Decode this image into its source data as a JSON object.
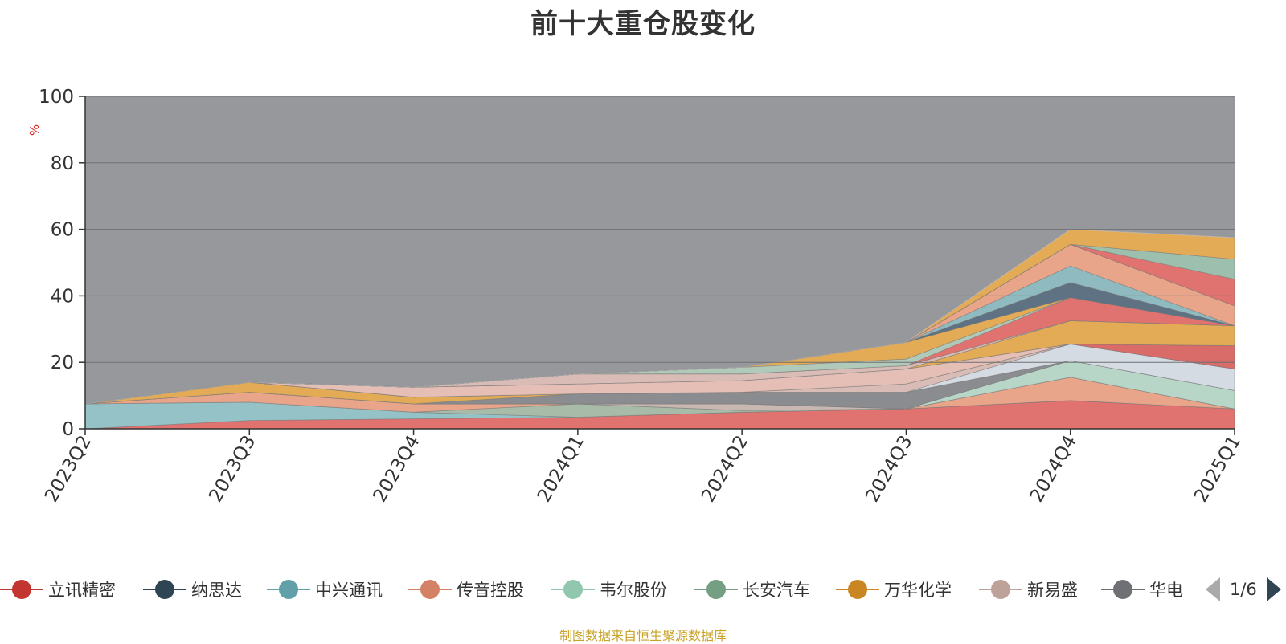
{
  "title": "前十大重仓股变化",
  "source_note": "制图数据来自恒生聚源数据库",
  "pager": {
    "text": "1/6",
    "prev_icon": "triangle-left-icon",
    "next_icon": "triangle-right-icon"
  },
  "colors": {
    "background_area": "#97989c",
    "grid": "#6f7073",
    "axis": "#333333",
    "ylabel": "#e02020"
  },
  "legend": [
    {
      "name": "立讯精密",
      "color": "#c23531"
    },
    {
      "name": "纳思达",
      "color": "#2f4554"
    },
    {
      "name": "中兴通讯",
      "color": "#61a0a8"
    },
    {
      "name": "传音控股",
      "color": "#d48265"
    },
    {
      "name": "韦尔股份",
      "color": "#91c7ae"
    },
    {
      "name": "长安汽车",
      "color": "#749f83"
    },
    {
      "name": "万华化学",
      "color": "#ca8622"
    },
    {
      "name": "新易盛",
      "color": "#bda29a"
    },
    {
      "name": "华电",
      "color": "#6e7074"
    }
  ],
  "chart_data": {
    "type": "area",
    "stacked": true,
    "title": "前十大重仓股变化",
    "ylabel": "%",
    "ylim": [
      0,
      100
    ],
    "yticks": [
      0,
      20,
      40,
      60,
      80,
      100
    ],
    "grid": true,
    "categories": [
      "2023Q2",
      "2023Q3",
      "2023Q4",
      "2024Q1",
      "2024Q2",
      "2024Q3",
      "2024Q4",
      "2025Q1"
    ],
    "legend_position": "bottom",
    "series": [
      {
        "name": "立讯精密",
        "color": "#e07370",
        "values": [
          0,
          2.5,
          3,
          3.5,
          5,
          6,
          8.5,
          6
        ]
      },
      {
        "color": "#94c2c7",
        "values": [
          7.5,
          5.5,
          2,
          0,
          0,
          0,
          0,
          0
        ]
      },
      {
        "color": "#a8bba9",
        "values": [
          0,
          0,
          0,
          4,
          0.5,
          0,
          0,
          0
        ]
      },
      {
        "color": "#e8a58a",
        "values": [
          0,
          3,
          2.5,
          0,
          0,
          0,
          7,
          0
        ]
      },
      {
        "color": "#c9b7b1",
        "values": [
          0,
          0,
          0,
          0,
          2,
          0,
          0,
          0
        ]
      },
      {
        "color": "#b8d6c8",
        "values": [
          0,
          0,
          0,
          0,
          0,
          0,
          5,
          5.5
        ]
      },
      {
        "color": "#8a8c90",
        "values": [
          0,
          0,
          0,
          3,
          3.5,
          5,
          0,
          0
        ]
      },
      {
        "color": "#e3ab56",
        "values": [
          0,
          3,
          2,
          0,
          0,
          0,
          0,
          0
        ]
      },
      {
        "color": "#d5dbe3",
        "values": [
          0,
          0,
          0,
          0,
          0,
          0,
          5,
          6.5
        ]
      },
      {
        "color": "#d9bcb6",
        "values": [
          0,
          0,
          0,
          0,
          0,
          2.5,
          0,
          0
        ]
      },
      {
        "color": "#d96b69",
        "values": [
          0,
          0,
          0,
          0,
          0,
          0,
          0,
          7
        ]
      },
      {
        "color": "#e5bfb6",
        "values": [
          0,
          0,
          3,
          3,
          3.5,
          4.5,
          0,
          0
        ]
      },
      {
        "color": "#a9bdb0",
        "values": [
          0,
          0,
          0,
          0,
          0,
          0,
          0,
          0
        ]
      },
      {
        "color": "#e3ab56",
        "values": [
          0,
          0,
          0,
          0,
          0,
          0,
          7,
          6
        ]
      },
      {
        "color": "#d9bcb6",
        "values": [
          0,
          0,
          0,
          3,
          2,
          1,
          0,
          0
        ]
      },
      {
        "color": "#e07370",
        "values": [
          0,
          0,
          0,
          0,
          0,
          0,
          7,
          0
        ]
      },
      {
        "color": "#b0c9b9",
        "values": [
          0,
          0,
          0,
          0,
          2,
          2,
          0,
          0
        ]
      },
      {
        "color": "#e3ab56",
        "values": [
          0,
          0,
          0,
          0,
          0,
          5,
          0,
          0
        ]
      },
      {
        "color": "#5f7283",
        "values": [
          0,
          0,
          0,
          0,
          0,
          0,
          4.5,
          0
        ]
      },
      {
        "color": "#8fbbc0",
        "values": [
          0,
          0,
          0,
          0,
          0,
          0,
          5,
          0
        ]
      },
      {
        "color": "#e8a58a",
        "values": [
          0,
          0,
          0,
          0,
          0,
          0,
          6.5,
          6
        ]
      },
      {
        "color": "#a8c8b6",
        "values": [
          0,
          0,
          0,
          0,
          0,
          0,
          0,
          0
        ]
      },
      {
        "color": "#e07370",
        "values": [
          0,
          0,
          0,
          0,
          0,
          0,
          0,
          8
        ]
      },
      {
        "color": "#9dbfae",
        "values": [
          0,
          0,
          0,
          0,
          0,
          0,
          0,
          6
        ]
      },
      {
        "color": "#e3ab56",
        "values": [
          0,
          0,
          0,
          0,
          0,
          0,
          4.5,
          6.5
        ]
      }
    ]
  }
}
